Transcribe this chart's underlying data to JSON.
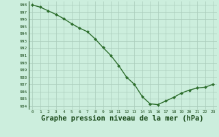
{
  "hours": [
    0,
    1,
    2,
    3,
    4,
    5,
    6,
    7,
    8,
    9,
    10,
    11,
    12,
    13,
    14,
    15,
    16,
    17,
    18,
    19,
    20,
    21,
    22,
    23
  ],
  "pressure": [
    998.0,
    997.7,
    997.2,
    996.7,
    996.1,
    995.4,
    994.8,
    994.3,
    993.3,
    992.1,
    991.0,
    989.6,
    988.0,
    987.0,
    985.3,
    984.3,
    984.2,
    984.7,
    985.2,
    985.8,
    986.2,
    986.5,
    986.6,
    987.0
  ],
  "line_color": "#2d6e2d",
  "marker": "D",
  "marker_size": 2.0,
  "bg_color": "#cceedd",
  "grid_color": "#aaccbb",
  "xlabel": "Graphe pression niveau de la mer (hPa)",
  "xlabel_fontsize": 7.5,
  "ylim": [
    983.5,
    998.5
  ],
  "xlim": [
    -0.5,
    23.5
  ],
  "ytick_min": 984,
  "ytick_max": 998,
  "xtick_labels": [
    "0",
    "1",
    "2",
    "3",
    "4",
    "5",
    "6",
    "7",
    "8",
    "9",
    "10",
    "11",
    "12",
    "13",
    "14",
    "15",
    "16",
    "17",
    "18",
    "19",
    "20",
    "21",
    "22",
    "23"
  ],
  "title_color": "#1a4a1a",
  "line_width": 1.0
}
